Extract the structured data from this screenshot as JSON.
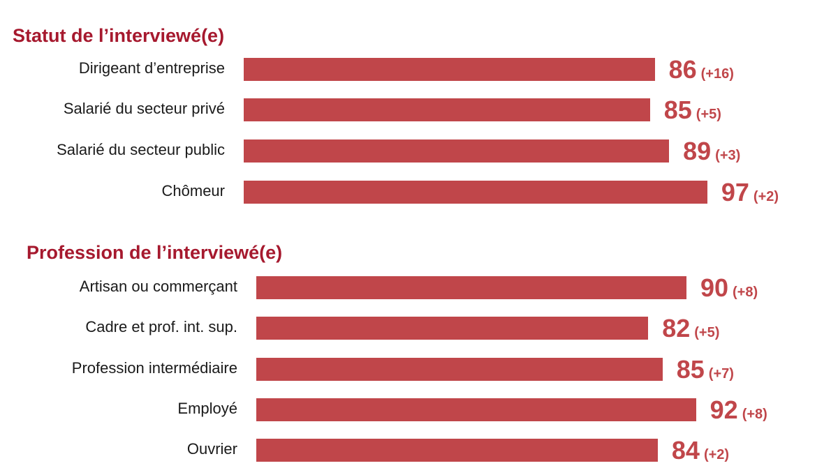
{
  "chart_data": [
    {
      "type": "bar",
      "orientation": "horizontal",
      "title": "Statut de l’interviewé(e)",
      "categories": [
        "Dirigeant d’entreprise",
        "Salarié du secteur privé",
        "Salarié du secteur public",
        "Chômeur"
      ],
      "values": [
        86,
        85,
        89,
        97
      ],
      "deltas": [
        "(+16)",
        "(+5)",
        "(+3)",
        "(+2)"
      ],
      "xlim": [
        0,
        100
      ]
    },
    {
      "type": "bar",
      "orientation": "horizontal",
      "title": "Profession de l’interviewé(e)",
      "categories": [
        "Artisan ou commerçant",
        "Cadre et prof. int. sup.",
        "Profession intermédiaire",
        "Employé",
        "Ouvrier"
      ],
      "values": [
        90,
        82,
        85,
        92,
        84
      ],
      "deltas": [
        "(+8)",
        "(+5)",
        "(+7)",
        "(+8)",
        "(+2)"
      ],
      "xlim": [
        0,
        100
      ]
    }
  ],
  "colors": {
    "bar": "#c0464a",
    "title": "#a6192e",
    "value_label": "#c0464a",
    "category_label": "#1a1a1a"
  }
}
